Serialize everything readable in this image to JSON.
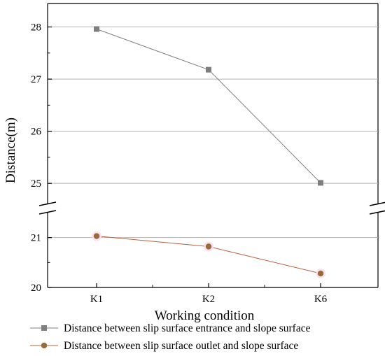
{
  "chart_data": {
    "type": "line",
    "xlabel": "Working condition",
    "ylabel": "Distance(m)",
    "categories": [
      "K1",
      "K2",
      "K6"
    ],
    "y_axis_break": true,
    "upper_segment": {
      "ylim": [
        24.6,
        28.45
      ],
      "ticks": [
        25,
        26,
        27,
        28
      ],
      "tick_labels": [
        "25",
        "26",
        "27",
        "28"
      ]
    },
    "lower_segment": {
      "ylim": [
        20,
        21.5
      ],
      "ticks": [
        20,
        21
      ],
      "tick_labels": [
        "20",
        "21"
      ]
    },
    "grid": true,
    "legend_position": "bottom",
    "series": [
      {
        "name": "Distance between slip surface entrance and slope surface",
        "values": [
          27.96,
          27.18,
          25.01
        ],
        "color": "#7f7f7f",
        "marker": "square",
        "segment": "upper"
      },
      {
        "name": "Distance between slip surface outlet and slope surface",
        "values": [
          21.03,
          20.82,
          20.28
        ],
        "color": "#b5603e",
        "marker_color": "#9a6a3a",
        "marker": "circle",
        "segment": "lower"
      }
    ]
  }
}
